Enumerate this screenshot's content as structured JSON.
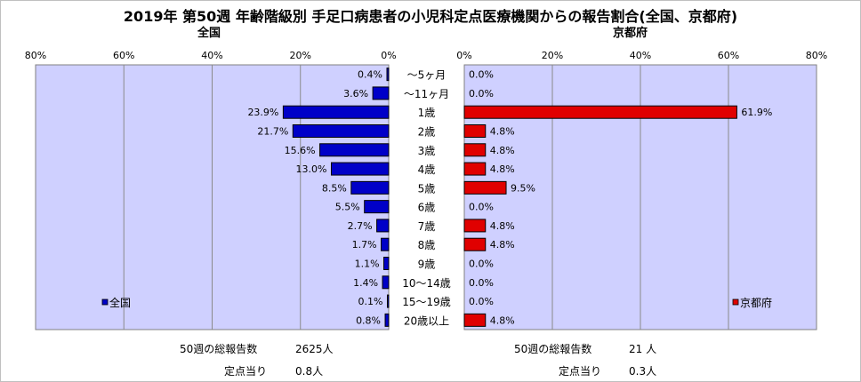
{
  "title": "2019年 第50週 年齢階級別 手足口病患者の小児科定点医療機関からの報告割合(全国、京都府)",
  "left_label": "全国",
  "right_label": "京都府",
  "footer": {
    "national": {
      "total_label": "50週の総報告数",
      "total_value": "2625人",
      "per_label": "定点当り",
      "per_value": "0.8人"
    },
    "kyoto": {
      "total_label": "50週の総報告数",
      "total_value": "21 人",
      "per_label": "定点当り",
      "per_value": "0.3人"
    }
  },
  "chart_data": {
    "type": "bar",
    "orientation": "horizontal-butterfly",
    "categories": [
      "～5ヶ月",
      "～11ヶ月",
      "1歳",
      "2歳",
      "3歳",
      "4歳",
      "5歳",
      "6歳",
      "7歳",
      "8歳",
      "9歳",
      "10～14歳",
      "15～19歳",
      "20歳以上"
    ],
    "xlim": [
      0,
      80
    ],
    "x_ticks": [
      "0%",
      "20%",
      "40%",
      "60%",
      "80%"
    ],
    "grid": true,
    "series": [
      {
        "name": "全国",
        "color": "#0000c8",
        "values": [
          0.4,
          3.6,
          23.9,
          21.7,
          15.6,
          13.0,
          8.5,
          5.5,
          2.7,
          1.7,
          1.1,
          1.4,
          0.1,
          0.8
        ],
        "labels": [
          "0.4%",
          "3.6%",
          "23.9%",
          "21.7%",
          "15.6%",
          "13.0%",
          "8.5%",
          "5.5%",
          "2.7%",
          "1.7%",
          "1.1%",
          "1.4%",
          "0.1%",
          "0.8%"
        ]
      },
      {
        "name": "京都府",
        "color": "#e00000",
        "values": [
          0.0,
          0.0,
          61.9,
          4.8,
          4.8,
          4.8,
          9.5,
          0.0,
          4.8,
          4.8,
          0.0,
          0.0,
          0.0,
          4.8
        ],
        "labels": [
          "0.0%",
          "0.0%",
          "61.9%",
          "4.8%",
          "4.8%",
          "4.8%",
          "9.5%",
          "0.0%",
          "4.8%",
          "4.8%",
          "0.0%",
          "0.0%",
          "0.0%",
          "4.8%"
        ]
      }
    ],
    "legend": {
      "left": "bottom-left",
      "right": "bottom-right"
    }
  }
}
